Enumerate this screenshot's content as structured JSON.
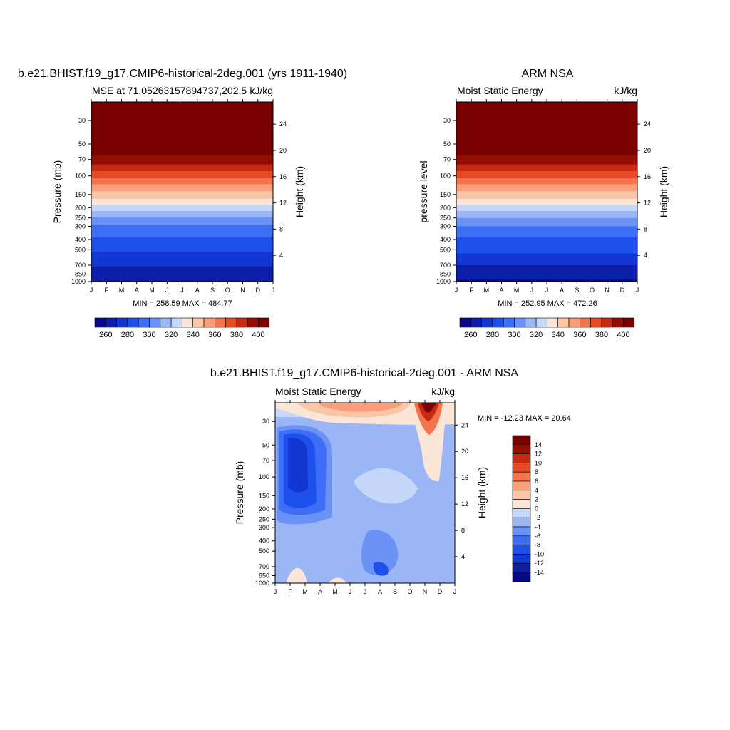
{
  "panels": [
    {
      "title": "b.e21.BHIST.f19_g17.CMIP6-historical-2deg.001 (yrs 1911-1940)",
      "left_label": "MSE at 71.05263157894737,202.5",
      "right_label": "kJ/kg",
      "ylabel": "Pressure (mb)",
      "ylabel_right": "Height (km)",
      "minmax": "MIN = 258.59 MAX = 484.77"
    },
    {
      "title": "ARM NSA",
      "left_label": "Moist Static Energy",
      "right_label": "kJ/kg",
      "ylabel": "pressure level",
      "ylabel_right": "Height (km)",
      "minmax": "MIN = 252.95 MAX = 472.26"
    },
    {
      "title": "b.e21.BHIST.f19_g17.CMIP6-historical-2deg.001 - ARM NSA",
      "left_label": "Moist Static Energy",
      "right_label": "kJ/kg",
      "ylabel": "Pressure (mb)",
      "ylabel_right": "Height (km)",
      "minmax": "MIN = -12.23 MAX =  20.64"
    }
  ],
  "chart_data": [
    {
      "type": "heatmap",
      "title": "b.e21.BHIST.f19_g17.CMIP6-historical-2deg.001 (yrs 1911-1940)",
      "x": [
        "J",
        "F",
        "M",
        "A",
        "M",
        "J",
        "J",
        "A",
        "S",
        "O",
        "N",
        "D",
        "J"
      ],
      "y_pressure_ticks": [
        30,
        50,
        70,
        100,
        150,
        200,
        250,
        300,
        400,
        500,
        700,
        850,
        1000
      ],
      "y_height_ticks": [
        24,
        20,
        16,
        12,
        8,
        4
      ],
      "xlabel": "",
      "ylabel": "Pressure (mb)",
      "ylabel_right": "Height (km)",
      "units": "kJ/kg",
      "min": 258.59,
      "max": 484.77,
      "isolines_pressure": [
        1000,
        720,
        520,
        380,
        290,
        245,
        215,
        190,
        165,
        140,
        120,
        105,
        90,
        78,
        64
      ],
      "isolines_dip_pressure": [
        350,
        250,
        190,
        85,
        55,
        40,
        30,
        25,
        20,
        17,
        14,
        12,
        10,
        8,
        6
      ],
      "levels": [
        260,
        270,
        280,
        290,
        300,
        310,
        320,
        330,
        340,
        350,
        360,
        370,
        380,
        390,
        400
      ],
      "colorbar_ticks": [
        260,
        280,
        300,
        320,
        340,
        360,
        380,
        400
      ]
    },
    {
      "type": "heatmap",
      "title": "ARM NSA",
      "x": [
        "J",
        "F",
        "M",
        "A",
        "M",
        "J",
        "J",
        "A",
        "S",
        "O",
        "N",
        "D",
        "J"
      ],
      "y_pressure_ticks": [
        30,
        50,
        70,
        100,
        150,
        200,
        250,
        300,
        400,
        500,
        700,
        850,
        1000
      ],
      "y_height_ticks": [
        24,
        20,
        16,
        12,
        8,
        4
      ],
      "xlabel": "",
      "ylabel": "pressure level",
      "ylabel_right": "Height (km)",
      "units": "kJ/kg",
      "min": 252.95,
      "max": 472.26,
      "isolines_pressure": [
        960,
        700,
        540,
        380,
        300,
        250,
        215,
        190,
        165,
        140,
        120,
        105,
        90,
        78,
        64
      ],
      "isolines_dip_pressure": [
        300,
        220,
        180,
        90,
        55,
        40,
        30,
        25,
        20,
        17,
        14,
        12,
        10,
        8,
        6
      ],
      "levels": [
        260,
        270,
        280,
        290,
        300,
        310,
        320,
        330,
        340,
        350,
        360,
        370,
        380,
        390,
        400
      ],
      "colorbar_ticks": [
        260,
        280,
        300,
        320,
        340,
        360,
        380,
        400
      ]
    },
    {
      "type": "heatmap",
      "title": "b.e21.BHIST.f19_g17.CMIP6-historical-2deg.001 - ARM NSA",
      "x": [
        "J",
        "F",
        "M",
        "A",
        "M",
        "J",
        "J",
        "A",
        "S",
        "O",
        "N",
        "D",
        "J"
      ],
      "y_pressure_ticks": [
        30,
        50,
        70,
        100,
        150,
        200,
        250,
        300,
        400,
        500,
        700,
        850,
        1000
      ],
      "y_height_ticks": [
        24,
        20,
        16,
        12,
        8,
        4
      ],
      "xlabel": "",
      "ylabel": "Pressure (mb)",
      "ylabel_right": "Height (km)",
      "units": "kJ/kg",
      "min": -12.23,
      "max": 20.64,
      "levels": [
        -14,
        -12,
        -10,
        -8,
        -6,
        -4,
        -2,
        0,
        2,
        4,
        6,
        8,
        10,
        12,
        14
      ],
      "colorbar_ticks": [
        14,
        12,
        10,
        8,
        6,
        4,
        2,
        0,
        -2,
        -4,
        -6,
        -8,
        -10,
        -12,
        -14
      ]
    }
  ],
  "colors": {
    "diverging": [
      "#08088a",
      "#0b1fa8",
      "#1236d1",
      "#1e50ec",
      "#3d6ef5",
      "#6b93f5",
      "#9ab6f7",
      "#c6d8fa",
      "#fbe6d8",
      "#fbc6a8",
      "#fa9f7a",
      "#f5744d",
      "#e84a26",
      "#c52a10",
      "#930e02",
      "#7a0000"
    ]
  }
}
